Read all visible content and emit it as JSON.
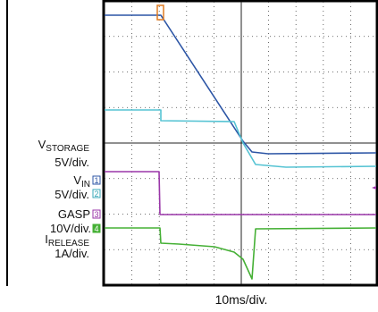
{
  "channels": [
    {
      "name": {
        "main": "V",
        "sub": "STORAGE"
      },
      "scale": "5V/div."
    },
    {
      "name": {
        "main": "V",
        "sub": "IN"
      },
      "marker": "1",
      "scale": "5V/div.",
      "scale_marker": "2"
    },
    {
      "name": {
        "main": "GASP"
      },
      "marker": "3",
      "scale": "10V/div.",
      "scale_marker": "4"
    },
    {
      "name": {
        "main": "I",
        "sub": "RELEASE"
      },
      "scale": "1A/div."
    }
  ],
  "timebase": "10ms/div."
}
